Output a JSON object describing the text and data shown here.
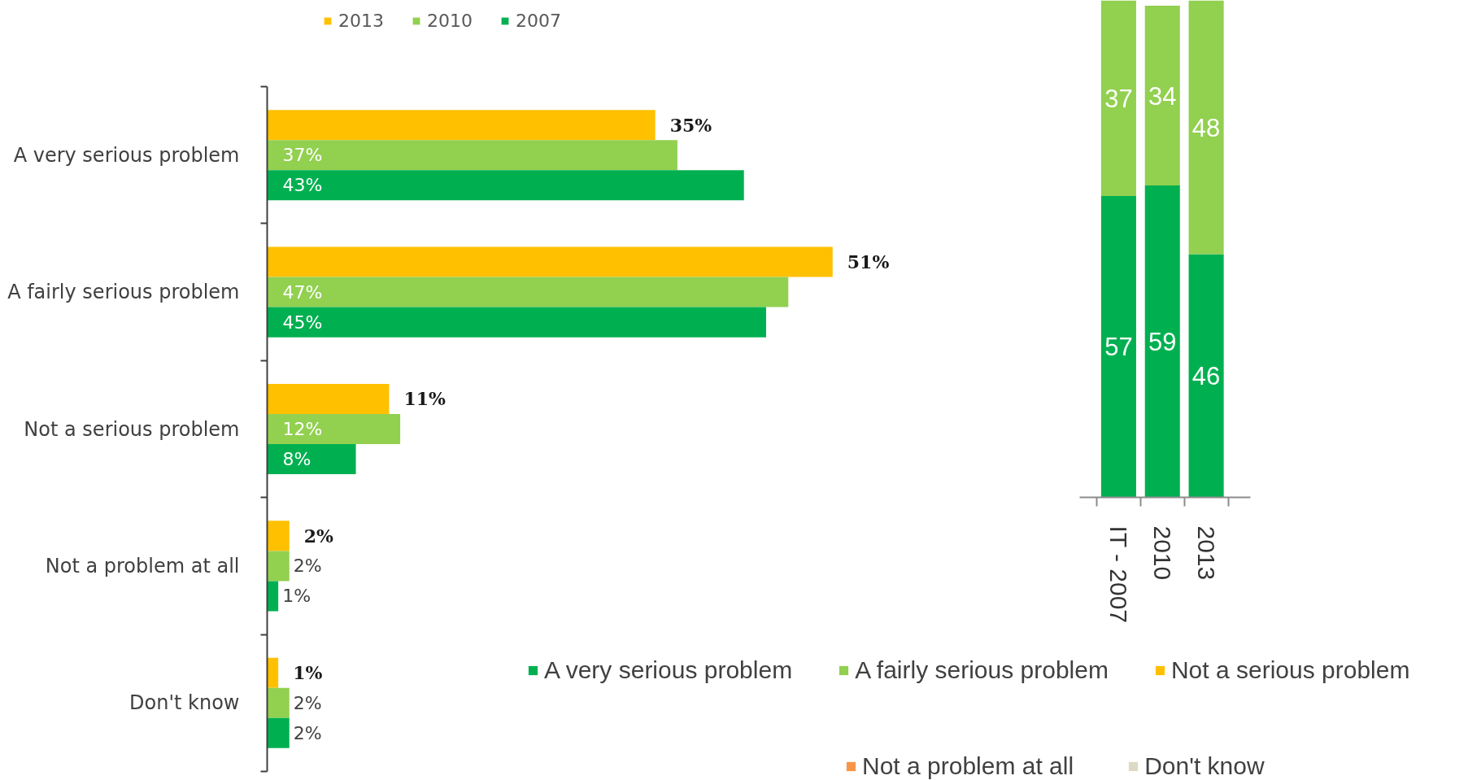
{
  "chart_data": [
    {
      "type": "bar",
      "orientation": "horizontal",
      "categories": [
        "A very serious problem",
        "A fairly serious problem",
        "Not a serious problem",
        "Not a problem at all",
        "Don't know"
      ],
      "series": [
        {
          "name": "2013",
          "color": "#ffc000",
          "values": [
            35,
            51,
            11,
            2,
            1
          ],
          "value_labels": [
            "35%",
            "51%",
            "11%",
            "2%",
            "1%"
          ]
        },
        {
          "name": "2010",
          "color": "#92d050",
          "values": [
            37,
            47,
            12,
            2,
            2
          ],
          "value_labels": [
            "37%",
            "47%",
            "12%",
            "2%",
            "2%"
          ]
        },
        {
          "name": "2007",
          "color": "#00b050",
          "values": [
            43,
            45,
            8,
            1,
            2
          ],
          "value_labels": [
            "43%",
            "45%",
            "8%",
            "1%",
            "2%"
          ]
        }
      ],
      "legend": "top left",
      "tick_labels": "y",
      "grid": false
    },
    {
      "type": "bar",
      "stacked": true,
      "categories": [
        "IT - 2007",
        "2010",
        "2013"
      ],
      "series": [
        {
          "name": "A very serious problem",
          "color": "#00b050",
          "values": [
            57,
            59,
            46
          ]
        },
        {
          "name": "A fairly serious problem",
          "color": "#92d050",
          "values": [
            37,
            34,
            48
          ]
        },
        {
          "name": "Not a serious problem",
          "color": "#ffc000",
          "values": [
            null,
            null,
            null
          ]
        },
        {
          "name": "Not a problem at all",
          "color": "#f79646",
          "values": [
            null,
            null,
            null
          ]
        },
        {
          "name": "Don't know",
          "color": "#ddd9c4",
          "values": [
            null,
            null,
            null
          ]
        }
      ],
      "ylim": [
        0,
        94
      ],
      "data_labels": true,
      "legend": "bottom",
      "tick_labels": "x",
      "grid": false
    }
  ]
}
